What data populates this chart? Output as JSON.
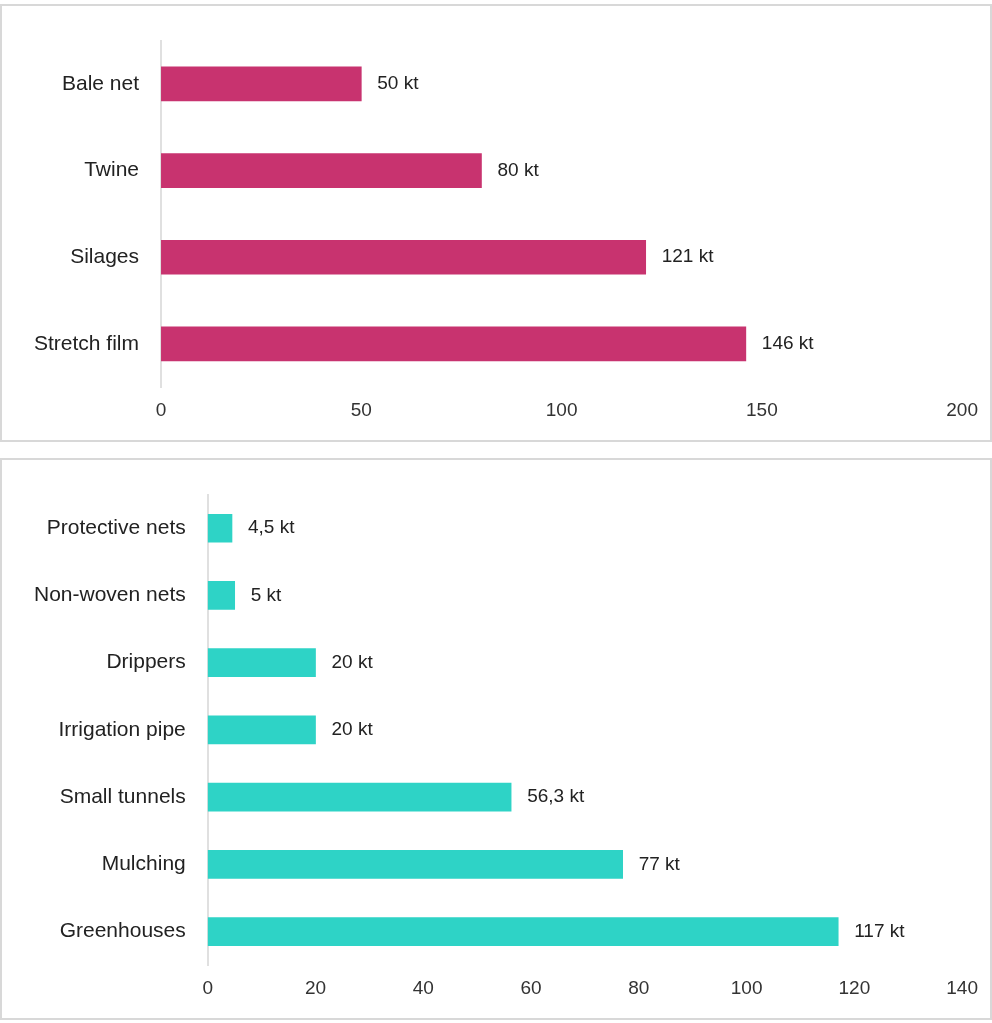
{
  "chart_data": [
    {
      "type": "bar",
      "orientation": "horizontal",
      "categories": [
        "Bale net",
        "Twine",
        "Silages",
        "Stretch film"
      ],
      "values": [
        50,
        80,
        121,
        146
      ],
      "color": "#c8336f",
      "value_labels": [
        "50 kt",
        "80 kt",
        "121 kt",
        "146 kt"
      ],
      "xlim": [
        0,
        200
      ],
      "xticks": [
        0,
        50,
        100,
        150,
        200
      ]
    },
    {
      "type": "bar",
      "orientation": "horizontal",
      "categories": [
        "Protective nets",
        "Non-woven nets",
        "Drippers",
        "Irrigation pipe",
        "Small tunnels",
        "Mulching",
        "Greenhouses"
      ],
      "values": [
        4.5,
        5,
        20,
        20,
        56.3,
        77,
        117
      ],
      "color": "#2ed3c6",
      "value_labels": [
        "4,5 kt",
        "5 kt",
        "20 kt",
        "20 kt",
        "56,3 kt",
        "77 kt",
        "117 kt"
      ],
      "xlim": [
        0,
        140
      ],
      "xticks": [
        0,
        20,
        40,
        60,
        80,
        100,
        120,
        140
      ]
    }
  ]
}
